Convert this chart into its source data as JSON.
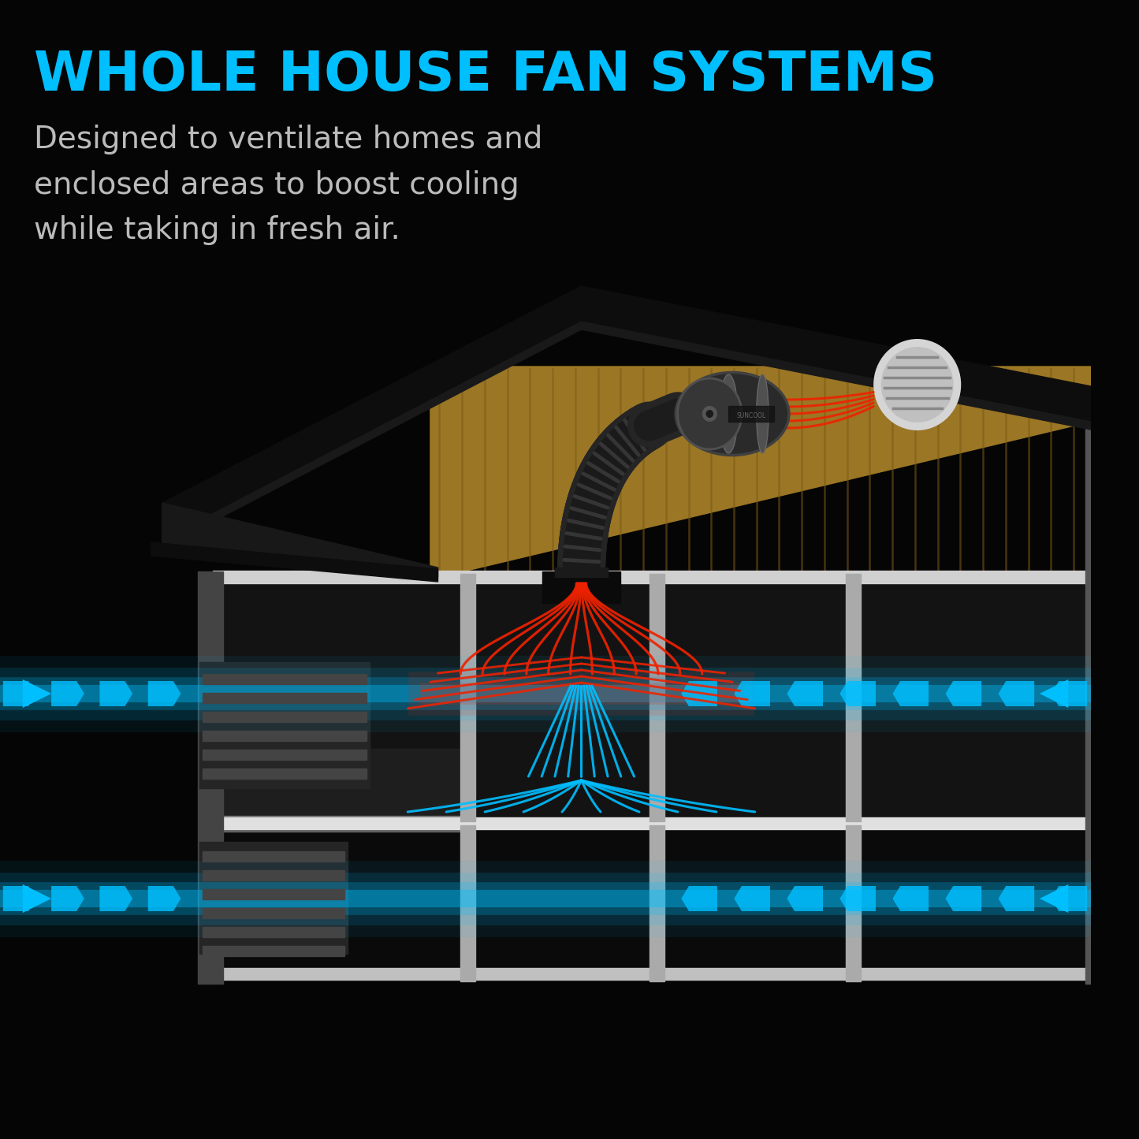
{
  "title": "WHOLE HOUSE FAN SYSTEMS",
  "subtitle": "Designed to ventilate homes and\nenclosed areas to boost cooling\nwhile taking in fresh air.",
  "title_color": "#00BFFF",
  "subtitle_color": "#BBBBBB",
  "bg_color": "#050505",
  "cyan": "#00BFFF",
  "red": "#EE2200",
  "wood_light": "#9B7625",
  "wood_dark": "#6B5010",
  "wood_plank": "#7A5C15",
  "roof_top": "#111111",
  "roof_bottom": "#1A1A1A",
  "wall_dark": "#151515",
  "wall_dark2": "#0C0C0C",
  "floor_strip": "#C8C8C8",
  "floor_strip2": "#AAAAAA",
  "col_color": "#AAAAAA",
  "left_wall": "#555555",
  "grille_bg": "#2A2A2A",
  "grille_slat": "#484848",
  "fan_box": "#111111",
  "duct_outer": "#252525",
  "duct_inner": "#181818",
  "duct_rib": "#333333",
  "motor_body": "#2D2D2D",
  "motor_face": "#3A3A3A",
  "motor_ring": "#484848",
  "vent_outer": "#D0D0D0",
  "vent_inner": "#B0B0B0",
  "vent_grille": "#888888"
}
